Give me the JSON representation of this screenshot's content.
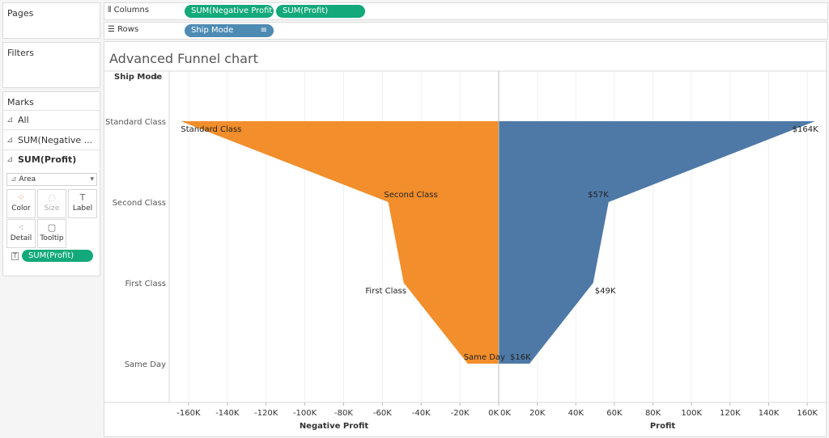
{
  "panels": {
    "pages": "Pages",
    "filters": "Filters",
    "marks": "Marks"
  },
  "marks": {
    "items": [
      {
        "label": "All",
        "icon": "area-chart-icon"
      },
      {
        "label": "SUM(Negative ...",
        "icon": "area-chart-icon"
      },
      {
        "label": "SUM(Profit)",
        "icon": "area-chart-icon"
      }
    ],
    "mark_type": "Area",
    "buttons": [
      {
        "label": "Color",
        "icon": "color-dots-icon"
      },
      {
        "label": "Size",
        "icon": "size-icon"
      },
      {
        "label": "Label",
        "icon": "label-text-icon"
      },
      {
        "label": "Detail",
        "icon": "detail-dots-icon"
      },
      {
        "label": "Tooltip",
        "icon": "tooltip-icon"
      }
    ],
    "label_pill": "SUM(Profit)"
  },
  "shelves": {
    "columns_label": "Columns",
    "columns": [
      "SUM(Negative Profit)",
      "SUM(Profit)"
    ],
    "rows_label": "Rows",
    "rows": [
      "Ship Mode"
    ]
  },
  "colors": {
    "negative": "#F28E2B",
    "profit": "#4E79A7",
    "pill_green": "#13A97A",
    "pill_blue": "#4E8BB3"
  },
  "chart_data": {
    "type": "area",
    "title": "Advanced Funnel chart",
    "row_header": "Ship Mode",
    "categories": [
      "Standard Class",
      "Second Class",
      "First Class",
      "Same Day"
    ],
    "series": [
      {
        "name": "Negative Profit",
        "values": [
          -164000,
          -57000,
          -49000,
          -16000
        ]
      },
      {
        "name": "Profit",
        "values": [
          164000,
          57000,
          49000,
          16000
        ]
      }
    ],
    "left_axis": {
      "label": "Negative Profit",
      "range": [
        -170000,
        0
      ],
      "ticks": [
        "-160K",
        "-140K",
        "-120K",
        "-100K",
        "-80K",
        "-60K",
        "-40K",
        "-20K",
        "0K"
      ]
    },
    "right_axis": {
      "label": "Profit",
      "range": [
        0,
        170000
      ],
      "ticks": [
        "0K",
        "20K",
        "40K",
        "60K",
        "80K",
        "100K",
        "120K",
        "140K",
        "160K"
      ]
    },
    "negative_labels": [
      "Standard Class",
      "Second Class",
      "First Class",
      "Same Day"
    ],
    "profit_labels": [
      "$164K",
      "$57K",
      "$49K",
      "$16K"
    ],
    "grid": true
  }
}
